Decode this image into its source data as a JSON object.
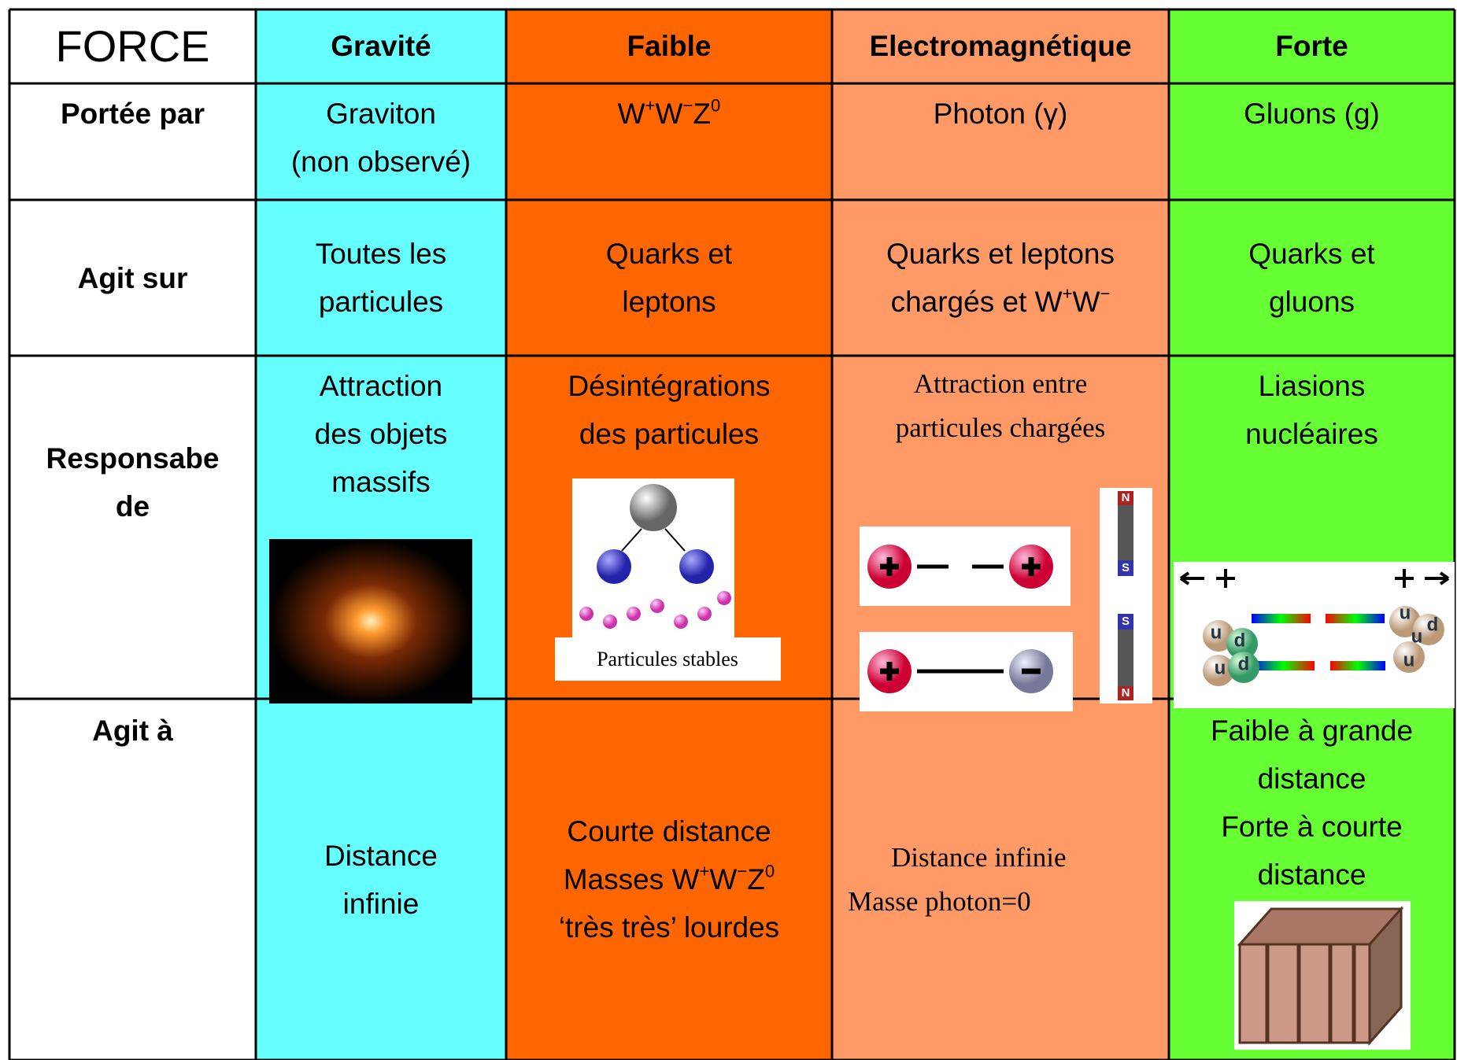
{
  "header": [
    "FORCE",
    "Gravité",
    "Faible",
    "Electromagnétique",
    "Forte"
  ],
  "rows": [
    {
      "label": [
        "Portée par"
      ],
      "cells": [
        [
          [
            {
              "t": "Graviton"
            }
          ],
          [
            {
              "t": "(non observé)"
            }
          ]
        ],
        [
          [
            {
              "t": "W"
            },
            {
              "sup": "+"
            },
            {
              "t": "W"
            },
            {
              "sup": "−"
            },
            {
              "t": "Z"
            },
            {
              "sup": "0"
            }
          ]
        ],
        [
          [
            {
              "t": "Photon (γ)"
            }
          ]
        ],
        [
          [
            {
              "t": "Gluons (g)"
            }
          ]
        ]
      ]
    },
    {
      "label": [
        "Agit sur"
      ],
      "cells": [
        [
          [
            {
              "t": "Toutes les"
            }
          ],
          [
            {
              "t": "particules"
            }
          ]
        ],
        [
          [
            {
              "t": "Quarks et"
            }
          ],
          [
            {
              "t": "leptons"
            }
          ]
        ],
        [
          [
            {
              "t": "Quarks et leptons"
            }
          ],
          [
            {
              "t": "chargés et W"
            },
            {
              "sup": "+"
            },
            {
              "t": "W"
            },
            {
              "sup": "−"
            }
          ]
        ],
        [
          [
            {
              "t": "Quarks et"
            }
          ],
          [
            {
              "t": "gluons"
            }
          ]
        ]
      ]
    },
    {
      "label": [
        "Responsabe",
        "de"
      ],
      "cells": [
        [
          [
            {
              "t": "Attraction"
            }
          ],
          [
            {
              "t": "des objets"
            }
          ],
          [
            {
              "t": "massifs"
            }
          ]
        ],
        [
          [
            {
              "t": "Désintégrations"
            }
          ],
          [
            {
              "t": "des particules"
            }
          ]
        ],
        [
          [
            {
              "t": "Attraction entre"
            }
          ],
          [
            {
              "t": "particules chargées"
            }
          ]
        ],
        [
          [
            {
              "t": "Liasions"
            }
          ],
          [
            {
              "t": "nucléaires"
            }
          ]
        ]
      ]
    },
    {
      "label": [
        "Agit à"
      ],
      "cells": [
        [
          [
            {
              "t": "Distance"
            }
          ],
          [
            {
              "t": "infinie"
            }
          ]
        ],
        [
          [
            {
              "t": "Courte distance"
            }
          ],
          [
            {
              "t": "Masses W"
            },
            {
              "sup": "+"
            },
            {
              "t": "W"
            },
            {
              "sup": "−"
            },
            {
              "t": "Z"
            },
            {
              "sup": "0"
            }
          ],
          [
            {
              "t": "‘très très’ lourdes"
            }
          ]
        ],
        [
          [
            {
              "t": "Distance infinie"
            }
          ],
          [
            {
              "t": "Masse photon=0"
            }
          ]
        ],
        [
          [
            {
              "t": "Faible à grande"
            }
          ],
          [
            {
              "t": "distance"
            }
          ],
          [
            {
              "t": "Forte à courte"
            }
          ],
          [
            {
              "t": "distance"
            }
          ]
        ]
      ]
    }
  ],
  "figures": {
    "decay_caption": "Particules stables",
    "magnet": [
      "N",
      "S",
      "S",
      "N"
    ],
    "quarks": [
      "u",
      "d",
      "u",
      "d",
      "u",
      "u",
      "d",
      "u"
    ]
  }
}
